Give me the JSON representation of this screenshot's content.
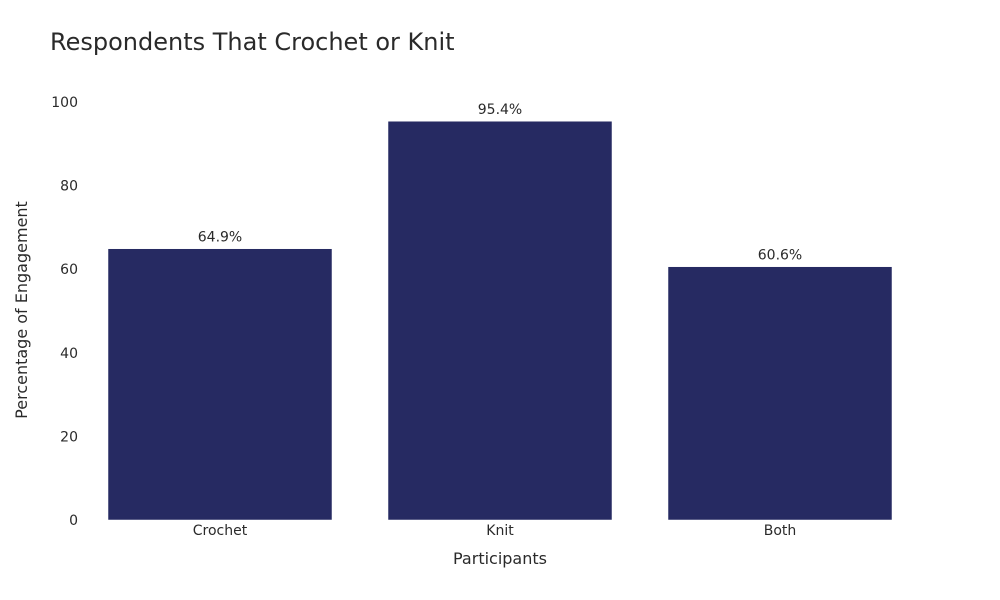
{
  "chart_data": {
    "type": "bar",
    "title": "Respondents That Crochet or Knit",
    "xlabel": "Participants",
    "ylabel": "Percentage of Engagement",
    "categories": [
      "Crochet",
      "Knit",
      "Both"
    ],
    "values": [
      64.9,
      95.4,
      60.6
    ],
    "value_labels": [
      "64.9%",
      "95.4%",
      "60.6%"
    ],
    "yticks": [
      0,
      20,
      40,
      60,
      80,
      100
    ],
    "ylim": [
      0,
      100
    ],
    "grid": false,
    "legend": false,
    "bar_color": "#262a62"
  }
}
